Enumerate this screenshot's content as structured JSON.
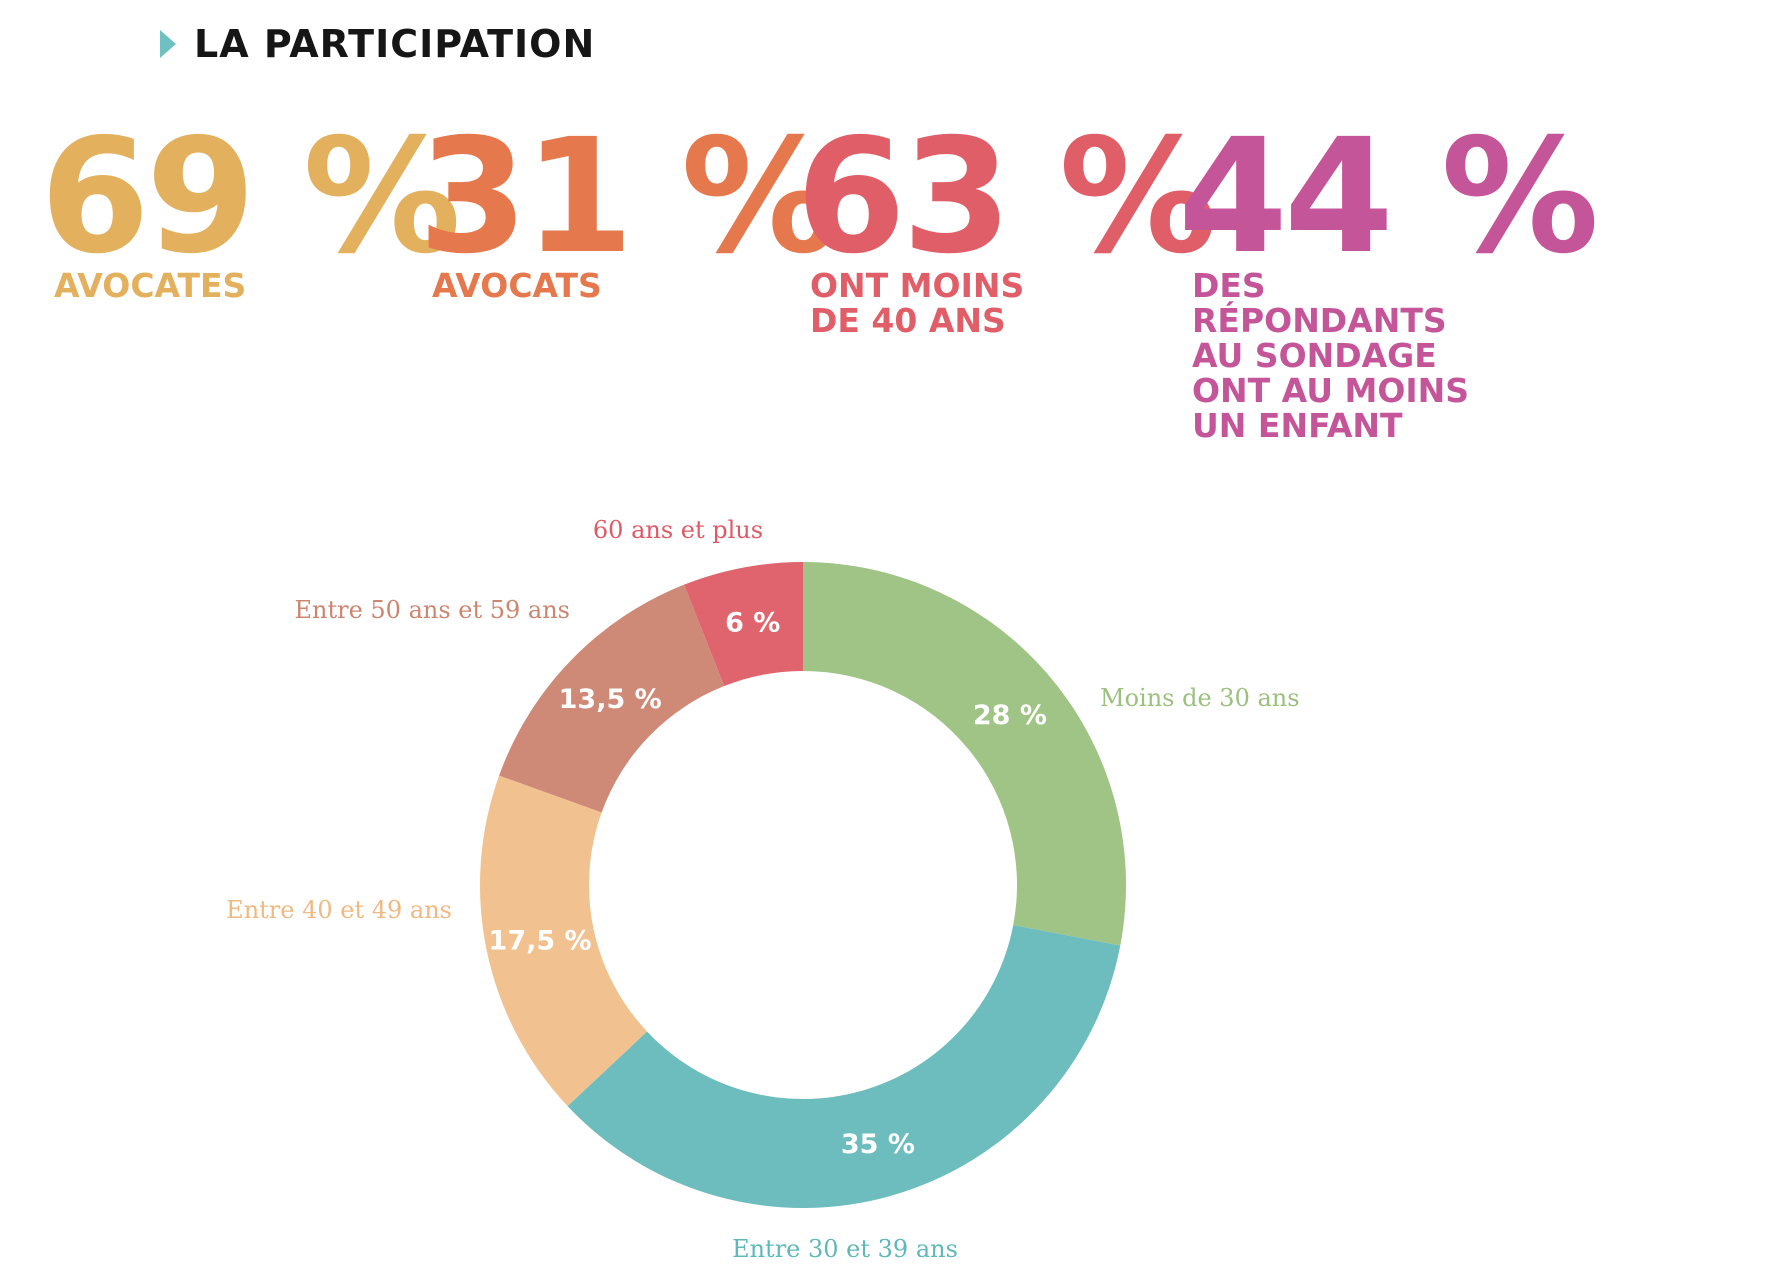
{
  "header": {
    "title": "LA PARTICIPATION"
  },
  "stats": [
    {
      "value": "69 %",
      "lines": [
        "AVOCATES"
      ],
      "color": "#e3b15e"
    },
    {
      "value": "31 %",
      "lines": [
        "AVOCATS"
      ],
      "color": "#e5784c"
    },
    {
      "value": "63 %",
      "lines": [
        "ONT MOINS",
        "DE 40 ANS"
      ],
      "color": "#e05e67"
    },
    {
      "value": "44 %",
      "lines": [
        "DES",
        "RÉPONDANTS",
        "AU SONDAGE",
        "ONT AU MOINS",
        "UN ENFANT"
      ],
      "color": "#c45598"
    }
  ],
  "chart_data": {
    "type": "pie",
    "categories": [
      "Moins de 30 ans",
      "Entre 30 et 39 ans",
      "Entre 40 et 49 ans",
      "Entre 50 ans et 59 ans",
      "60 ans et plus"
    ],
    "values": [
      28,
      35,
      17.5,
      13.5,
      6
    ],
    "value_labels": [
      "28 %",
      "35 %",
      "17,5 %",
      "13,5 %",
      "6 %"
    ],
    "colors": [
      "#9fc485",
      "#6dbdbe",
      "#f2c190",
      "#cf8a77",
      "#e0646d"
    ],
    "label_colors": [
      "#9cc07f",
      "#5fb8b9",
      "#eeb982",
      "#cc8670",
      "#dd5a66"
    ]
  }
}
